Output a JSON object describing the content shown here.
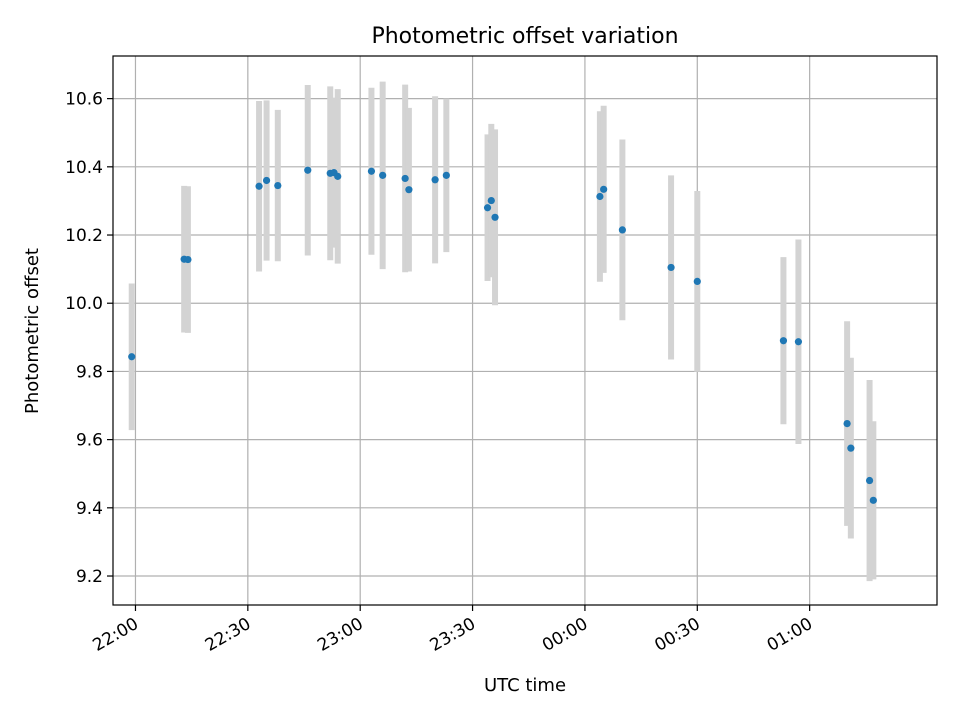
{
  "chart_data": {
    "type": "scatter",
    "title": "Photometric offset variation",
    "xlabel": "UTC time",
    "ylabel": "Photometric offset",
    "grid": true,
    "x_range": [
      "21:54",
      "01:34"
    ],
    "ylim": [
      9.115,
      10.725
    ],
    "x_ticks": [
      {
        "time": "22:00",
        "label": "22:00"
      },
      {
        "time": "22:30",
        "label": "22:30"
      },
      {
        "time": "23:00",
        "label": "23:00"
      },
      {
        "time": "23:30",
        "label": "23:30"
      },
      {
        "time": "00:00",
        "label": "00:00"
      },
      {
        "time": "00:30",
        "label": "00:30"
      },
      {
        "time": "01:00",
        "label": "01:00"
      }
    ],
    "y_ticks": [
      9.2,
      9.4,
      9.6,
      9.8,
      10.0,
      10.2,
      10.4,
      10.6
    ],
    "colors": {
      "point": "#1f77b4",
      "errorbar": "#d3d3d3",
      "grid": "#b0b0b0"
    },
    "points": [
      {
        "time": "21:59",
        "y": 9.843,
        "err": 0.215
      },
      {
        "time": "22:13",
        "y": 10.129,
        "err": 0.215
      },
      {
        "time": "22:14",
        "y": 10.128,
        "err": 0.215
      },
      {
        "time": "22:33",
        "y": 10.343,
        "err": 0.25
      },
      {
        "time": "22:35",
        "y": 10.36,
        "err": 0.235
      },
      {
        "time": "22:38",
        "y": 10.345,
        "err": 0.222
      },
      {
        "time": "22:46",
        "y": 10.39,
        "err": 0.25
      },
      {
        "time": "22:52",
        "y": 10.381,
        "err": 0.255
      },
      {
        "time": "22:53",
        "y": 10.383,
        "err": 0.22
      },
      {
        "time": "22:54",
        "y": 10.372,
        "err": 0.256
      },
      {
        "time": "23:03",
        "y": 10.387,
        "err": 0.245
      },
      {
        "time": "23:06",
        "y": 10.375,
        "err": 0.275
      },
      {
        "time": "23:12",
        "y": 10.366,
        "err": 0.275
      },
      {
        "time": "23:13",
        "y": 10.333,
        "err": 0.24
      },
      {
        "time": "23:20",
        "y": 10.362,
        "err": 0.245
      },
      {
        "time": "23:23",
        "y": 10.375,
        "err": 0.225
      },
      {
        "time": "23:34",
        "y": 10.28,
        "err": 0.215
      },
      {
        "time": "23:35",
        "y": 10.301,
        "err": 0.225
      },
      {
        "time": "23:36",
        "y": 10.252,
        "err": 0.258
      },
      {
        "time": "00:04",
        "y": 10.313,
        "err": 0.25
      },
      {
        "time": "00:05",
        "y": 10.334,
        "err": 0.245
      },
      {
        "time": "00:10",
        "y": 10.215,
        "err": 0.265
      },
      {
        "time": "00:23",
        "y": 10.105,
        "err": 0.27
      },
      {
        "time": "00:30",
        "y": 10.064,
        "err": 0.265
      },
      {
        "time": "00:53",
        "y": 9.89,
        "err": 0.245
      },
      {
        "time": "00:57",
        "y": 9.887,
        "err": 0.3
      },
      {
        "time": "01:10",
        "y": 9.647,
        "err": 0.3
      },
      {
        "time": "01:11",
        "y": 9.575,
        "err": 0.265
      },
      {
        "time": "01:16",
        "y": 9.48,
        "err": 0.295
      },
      {
        "time": "01:17",
        "y": 9.422,
        "err": 0.232
      }
    ]
  }
}
